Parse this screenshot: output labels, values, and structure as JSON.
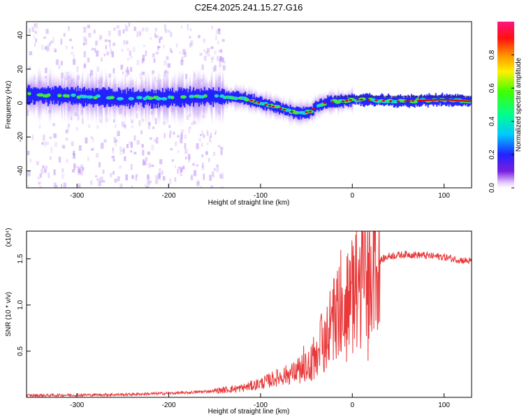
{
  "figure_title": "C2E4.2025.241.15.27.G16",
  "colors": {
    "snr_line": "#e8383a",
    "ridge_core": "#d01010",
    "ridge_mid": "#18d8c8",
    "ridge_outer": "#1a1aff",
    "halo": "#8a3cf0",
    "scatter": "#b27cf2"
  },
  "chart_data": [
    {
      "type": "heatmap",
      "xlabel": "Height of straight line (km)",
      "ylabel": "Frequency (Hz)",
      "xlim": [
        -355,
        130
      ],
      "ylim": [
        -50,
        48
      ],
      "xticks": [
        -300,
        -200,
        -100,
        0,
        100
      ],
      "xtick_labels": [
        "-300",
        "-200",
        "-100",
        "0",
        "100"
      ],
      "yticks": [
        -40,
        -20,
        0,
        20,
        40
      ],
      "ytick_labels": [
        "-40",
        "-20",
        "0",
        "20",
        "40"
      ],
      "ridge": {
        "x": [
          -355,
          -300,
          -250,
          -200,
          -150,
          -120,
          -100,
          -80,
          -60,
          -45,
          -40,
          -30,
          -20,
          -10,
          0,
          10,
          50,
          100,
          130
        ],
        "freq": [
          5,
          4,
          3,
          3,
          4,
          3,
          0,
          -3,
          -6,
          -5,
          -2,
          0,
          1,
          1,
          2,
          2,
          1,
          2,
          1
        ]
      },
      "colorbar": {
        "label": "Normalized spectral amplitude",
        "range": [
          0,
          1
        ],
        "ticks": [
          0.0,
          0.2,
          0.4,
          0.6,
          0.8
        ],
        "tick_labels": [
          "0.0",
          "0.2",
          "0.4",
          "0.6",
          "0.8"
        ]
      }
    },
    {
      "type": "line",
      "xlabel": "Height of straight line (km)",
      "ylabel": "SNR (10 * v/v)",
      "y_multiplier": "(x10⁴)",
      "xlim": [
        -355,
        130
      ],
      "ylim": [
        0,
        1.8
      ],
      "xticks": [
        -300,
        -200,
        -100,
        0,
        100
      ],
      "xtick_labels": [
        "-300",
        "-200",
        "-100",
        "0",
        "100"
      ],
      "yticks": [
        0.5,
        1.0,
        1.5
      ],
      "ytick_labels": [
        "0.5",
        "1.0",
        "1.5"
      ],
      "envelope": {
        "x": [
          -355,
          -250,
          -180,
          -150,
          -120,
          -100,
          -80,
          -60,
          -50,
          -40,
          -30,
          -20,
          -10,
          0,
          5,
          10,
          20,
          30,
          40,
          60,
          100,
          110,
          130
        ],
        "y": [
          0.02,
          0.03,
          0.05,
          0.07,
          0.1,
          0.15,
          0.22,
          0.28,
          0.35,
          0.45,
          0.65,
          0.85,
          1.0,
          1.1,
          1.25,
          1.25,
          1.35,
          1.48,
          1.53,
          1.55,
          1.52,
          1.5,
          1.47
        ]
      }
    }
  ]
}
